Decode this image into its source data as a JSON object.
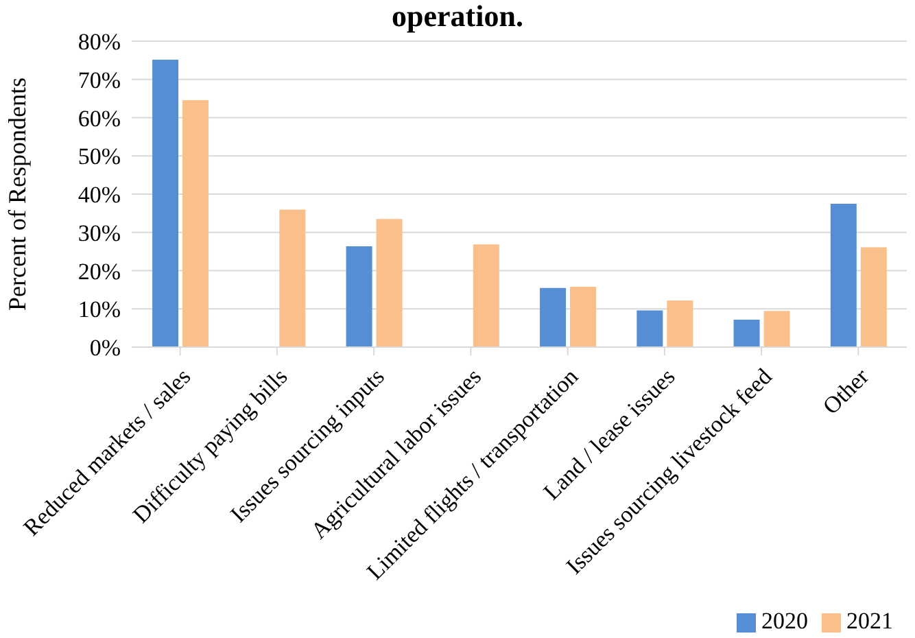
{
  "chart_data": {
    "type": "bar",
    "title": "operation.",
    "ylabel": "Percent of Respondents",
    "categories": [
      "Reduced markets / sales",
      "Difficulty paying bills",
      "Issues sourcing inputs",
      "Agricultural labor issues",
      "Limited flights / transportation",
      "Land / lease issues",
      "Issues sourcing livestock feed",
      "Other"
    ],
    "series": [
      {
        "name": "2020",
        "color": "#558ed5",
        "values": [
          75,
          null,
          26.2,
          null,
          15.3,
          9.4,
          7.0,
          37.3
        ]
      },
      {
        "name": "2021",
        "color": "#f9c08b",
        "values": [
          64.4,
          35.8,
          33.3,
          26.7,
          15.6,
          12.0,
          9.3,
          25.9
        ]
      }
    ],
    "ylim": [
      0,
      80
    ],
    "yticks": [
      {
        "value": 0,
        "label": "0%"
      },
      {
        "value": 10,
        "label": "10%"
      },
      {
        "value": 20,
        "label": "20%"
      },
      {
        "value": 30,
        "label": "30%"
      },
      {
        "value": 40,
        "label": "40%"
      },
      {
        "value": 50,
        "label": "50%"
      },
      {
        "value": 60,
        "label": "60%"
      },
      {
        "value": 70,
        "label": "70%"
      },
      {
        "value": 80,
        "label": "80%"
      }
    ],
    "grid": "y",
    "legend": "bottom right"
  }
}
